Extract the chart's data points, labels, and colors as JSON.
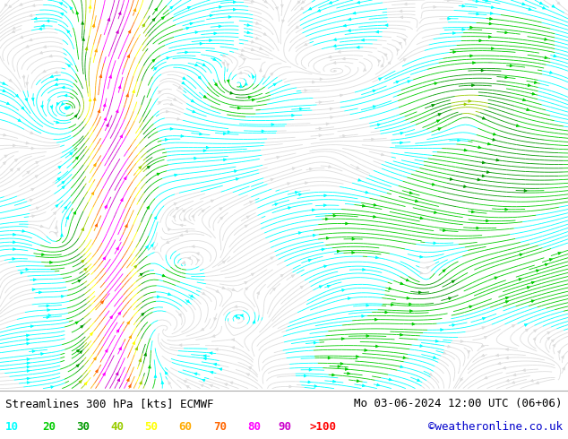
{
  "title_left": "Streamlines 300 hPa [kts] ECMWF",
  "title_right": "Mo 03-06-2024 12:00 UTC (06+06)",
  "copyright": "©weatheronline.co.uk",
  "legend_values": [
    "10",
    "20",
    "30",
    "40",
    "50",
    "60",
    "70",
    "80",
    "90",
    ">100"
  ],
  "legend_colors": [
    "#00ffff",
    "#00cc00",
    "#009900",
    "#99cc00",
    "#ffff00",
    "#ffaa00",
    "#ff6600",
    "#ff00ff",
    "#cc00cc",
    "#ff0000"
  ],
  "bg_color": "#ffffff",
  "plot_bg": "#e8e8e8",
  "title_color": "#000000",
  "title_fontsize": 9,
  "legend_fontsize": 9,
  "copyright_color": "#0000cc",
  "speed_bounds": [
    0,
    10,
    20,
    30,
    40,
    50,
    60,
    70,
    80,
    90,
    100,
    300
  ],
  "speed_hex": [
    "#dddddd",
    "#00ffff",
    "#00cc00",
    "#009900",
    "#99cc00",
    "#ffff00",
    "#ffaa00",
    "#ff6600",
    "#ff00ff",
    "#cc00cc",
    "#ff0000"
  ]
}
